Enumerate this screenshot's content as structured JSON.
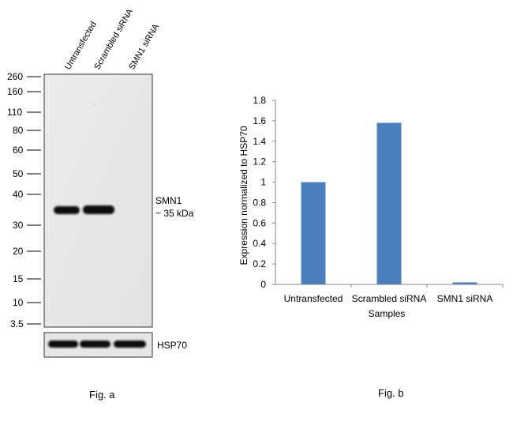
{
  "figure_a": {
    "lane_labels": [
      "Untransfected",
      "Scrambled siRNA",
      "SMN1 siRNA"
    ],
    "mw_markers": [
      "260",
      "160",
      "110",
      "80",
      "60",
      "50",
      "40",
      "30",
      "20",
      "15",
      "10",
      "3.5"
    ],
    "band_label": "SMN1",
    "band_size": "~ 35 kDa",
    "control_label": "HSP70",
    "caption": "Fig. a"
  },
  "figure_b": {
    "caption": "Fig. b"
  },
  "chart_data": {
    "type": "bar",
    "categories": [
      "Untransfected",
      "Scrambled siRNA",
      "SMN1 siRNA"
    ],
    "values": [
      1.0,
      1.58,
      0.02
    ],
    "title": "",
    "xlabel": "Samples",
    "ylabel": "Expression normalized to HSP70",
    "ylim": [
      0,
      1.8
    ],
    "yticks": [
      0,
      0.2,
      0.4,
      0.6,
      0.8,
      1,
      1.2,
      1.4,
      1.6,
      1.8
    ],
    "grid": false,
    "bar_color": "#4a7ebf"
  }
}
